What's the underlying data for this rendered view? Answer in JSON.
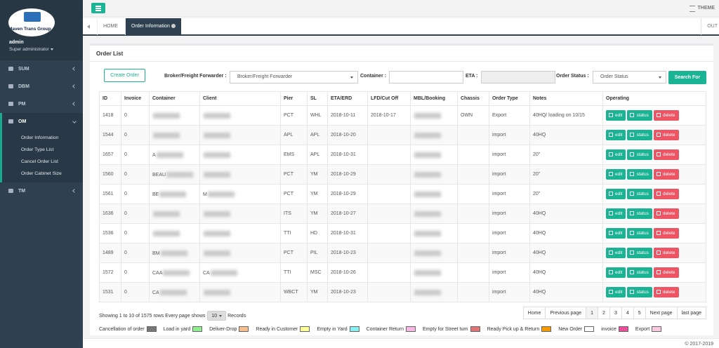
{
  "sidebar": {
    "logo": "Maven Trans Group",
    "user": "admin",
    "role": "Super administrator",
    "menu": [
      {
        "label": "SUM"
      },
      {
        "label": "DBM"
      },
      {
        "label": "PM"
      },
      {
        "label": "OM",
        "children": [
          "Order Information",
          "Order Type List",
          "Cancel Order List",
          "Order Cabinet Size"
        ]
      },
      {
        "label": "TM"
      }
    ]
  },
  "topbar": {
    "theme": "THEME"
  },
  "tabs": {
    "items": [
      "HOME",
      "Order Information"
    ],
    "right": "OUT"
  },
  "panel": {
    "title": "Order List",
    "create": "Create Order",
    "filters": {
      "broker_label": "Broker/Freight Forwarder :",
      "broker_placeholder": "Broker/Freight Forwarder",
      "container_label": "Container :",
      "eta_label": "ETA :",
      "status_label": "Order Status :",
      "status_placeholder": "Order Status",
      "search": "Search For"
    }
  },
  "table": {
    "columns": [
      "ID",
      "Invoice",
      "Container",
      "Client",
      "Pier",
      "SL",
      "ETA/ERD",
      "LFD/Cut Off",
      "MBL/Booking",
      "Chassis",
      "Order Type",
      "Notes",
      "Operating"
    ],
    "rows": [
      [
        1418,
        0,
        null,
        null,
        "PCT",
        "WHL",
        "2018-10-11",
        "2018-10-17",
        null,
        "OWN",
        "Export",
        "40HQ/ loading on 10/15"
      ],
      [
        1544,
        0,
        null,
        null,
        "APL",
        "APL",
        "2018-10-20",
        null,
        null,
        null,
        "import",
        "40HQ"
      ],
      [
        1657,
        0,
        "A",
        null,
        "EMS",
        "APL",
        "2018-10-31",
        null,
        null,
        null,
        "import",
        "20\""
      ],
      [
        1560,
        0,
        "BEAU",
        null,
        "PCT",
        "YM",
        "2018-10-29",
        null,
        null,
        null,
        "import",
        "20\""
      ],
      [
        1561,
        0,
        "BE",
        "M",
        "PCT",
        "YM",
        "2018-10-29",
        null,
        null,
        null,
        "import",
        "20\""
      ],
      [
        1636,
        0,
        null,
        null,
        "ITS",
        "YM",
        "2018-10-27",
        null,
        null,
        null,
        "import",
        "40HQ"
      ],
      [
        1536,
        0,
        null,
        null,
        "TTI",
        "HD",
        "2018-10-31",
        null,
        null,
        null,
        "import",
        "40HQ"
      ],
      [
        1489,
        0,
        "BM",
        null,
        "PCT",
        "PIL",
        "2018-10-23",
        null,
        null,
        null,
        "import",
        "40HQ"
      ],
      [
        1572,
        0,
        "CAA",
        "CA",
        "TTI",
        "MSC",
        "2018-10-26",
        null,
        null,
        null,
        "import",
        "40HQ"
      ],
      [
        1531,
        0,
        "CA",
        null,
        "WBCT",
        "YM",
        "2018-10-23",
        null,
        null,
        null,
        "import",
        "40HQ"
      ]
    ],
    "actions": [
      "edit",
      "status",
      "delete"
    ]
  },
  "pagination": {
    "summary": "Showing 1 to 10 of 1575 rows Every page shows",
    "page_size": "10",
    "records": "Records",
    "pages": [
      "Home",
      "Previous page",
      "1",
      "2",
      "3",
      "4",
      "5",
      "Next page",
      "last page"
    ]
  },
  "legend": [
    {
      "label": "Cancellation of order",
      "color": "#777777"
    },
    {
      "label": "Load in yard",
      "color": "#90ee90"
    },
    {
      "label": "Deliver-Drop",
      "color": "#f5c08e"
    },
    {
      "label": "Ready in Customer",
      "color": "#ffff99"
    },
    {
      "label": "Empty in Yard",
      "color": "#88f0f0"
    },
    {
      "label": "Container Return",
      "color": "#f7b8e6"
    },
    {
      "label": "Empty for Street turn",
      "color": "#e07575"
    },
    {
      "label": "Ready Pick up & Return",
      "color": "#f59a00"
    },
    {
      "label": "New Order",
      "color": "#ffffff"
    },
    {
      "label": "invoice",
      "color": "#ec4f9c"
    },
    {
      "label": "Export",
      "color": "#f9c9e0"
    }
  ],
  "footer": "© 2017-2019"
}
